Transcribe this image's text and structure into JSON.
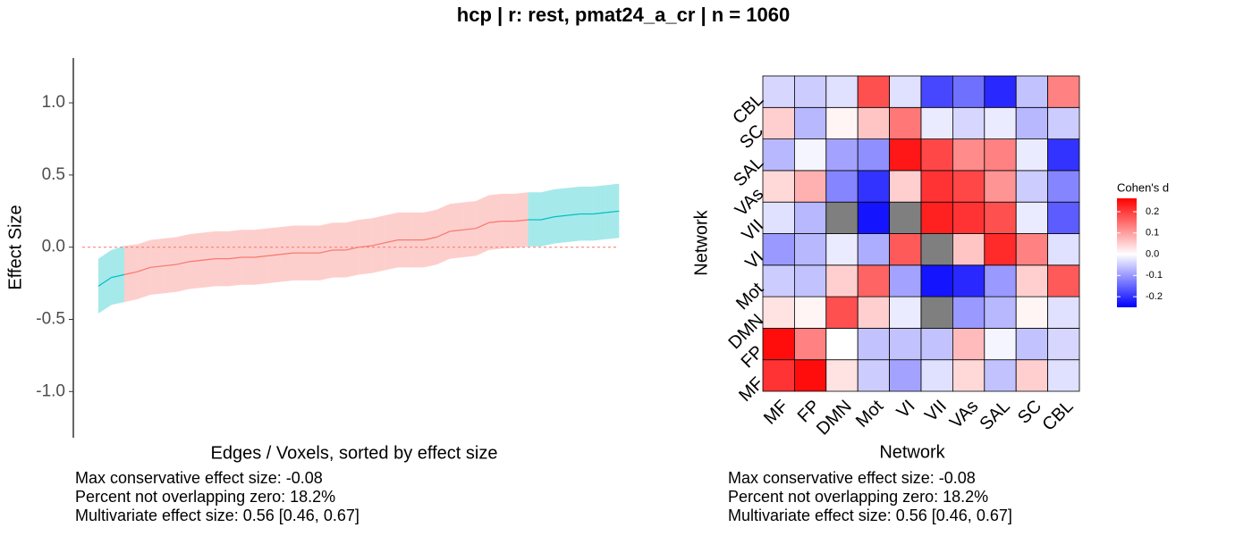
{
  "title": "hcp | r: rest, pmat24_a_cr | n = 1060",
  "chart_data": [
    {
      "type": "ribbon-line",
      "xlabel": "Edges / Voxels, sorted by effect size",
      "ylabel": "Effect Size",
      "x": [
        1,
        2,
        3,
        4,
        5,
        6,
        7,
        8,
        9,
        10,
        11,
        12,
        13,
        14,
        15,
        16,
        17,
        18,
        19,
        20,
        21,
        22,
        23,
        24,
        25,
        26,
        27,
        28,
        29,
        30,
        31,
        32,
        33,
        34,
        35,
        36,
        37,
        38,
        39,
        40,
        41
      ],
      "values": [
        -0.27,
        -0.21,
        -0.19,
        -0.17,
        -0.14,
        -0.13,
        -0.12,
        -0.1,
        -0.09,
        -0.08,
        -0.08,
        -0.07,
        -0.07,
        -0.06,
        -0.05,
        -0.04,
        -0.04,
        -0.04,
        -0.02,
        -0.02,
        0.0,
        0.01,
        0.03,
        0.05,
        0.05,
        0.05,
        0.07,
        0.11,
        0.12,
        0.13,
        0.17,
        0.18,
        0.18,
        0.19,
        0.19,
        0.21,
        0.22,
        0.23,
        0.23,
        0.24,
        0.25
      ],
      "ci_lower": [
        -0.46,
        -0.4,
        -0.38,
        -0.36,
        -0.33,
        -0.32,
        -0.31,
        -0.29,
        -0.28,
        -0.27,
        -0.27,
        -0.26,
        -0.26,
        -0.25,
        -0.24,
        -0.23,
        -0.23,
        -0.23,
        -0.21,
        -0.21,
        -0.19,
        -0.18,
        -0.16,
        -0.14,
        -0.14,
        -0.14,
        -0.12,
        -0.08,
        -0.07,
        -0.06,
        -0.02,
        -0.01,
        -0.005,
        0.005,
        0.005,
        0.025,
        0.035,
        0.045,
        0.045,
        0.055,
        0.065
      ],
      "ci_upper": [
        -0.08,
        -0.02,
        0.01,
        0.02,
        0.05,
        0.06,
        0.07,
        0.09,
        0.1,
        0.11,
        0.11,
        0.12,
        0.12,
        0.13,
        0.14,
        0.15,
        0.15,
        0.15,
        0.17,
        0.17,
        0.19,
        0.2,
        0.22,
        0.24,
        0.24,
        0.24,
        0.26,
        0.3,
        0.31,
        0.32,
        0.36,
        0.37,
        0.37,
        0.38,
        0.38,
        0.4,
        0.41,
        0.42,
        0.42,
        0.43,
        0.44
      ],
      "colors": {
        "overlap": "#f8766d",
        "nonoverlap": "#00bfc4"
      },
      "reference_line": 0,
      "xlim": [
        -0.92,
        42.9
      ],
      "ylim": [
        -1.32,
        1.31
      ],
      "yticks": [
        {
          "value": -1,
          "label": "-1.0"
        },
        -0.5,
        {
          "value": 0,
          "label": "0.0"
        },
        0.5,
        {
          "value": 1,
          "label": "1.0"
        }
      ],
      "annotations": [
        "Max conservative effect size: -0.08",
        "Percent not overlapping zero: 18.2%",
        "Multivariate effect size: 0.56 [0.46, 0.67]"
      ]
    },
    {
      "type": "heatmap",
      "xlabel": "Network",
      "ylabel": "Network",
      "x_categories": [
        "MF",
        "FP",
        "DMN",
        "Mot",
        "VI",
        "VII",
        "VAs",
        "SAL",
        "SC",
        "CBL"
      ],
      "y_categories": [
        "MF",
        "FP",
        "DMN",
        "Mot",
        "VI",
        "VII",
        "VAs",
        "SAL",
        "SC",
        "CBL"
      ],
      "z": [
        [
          0.21,
          0.25,
          0.03,
          -0.05,
          -0.09,
          -0.03,
          0.04,
          -0.06,
          0.05,
          -0.03
        ],
        [
          0.25,
          0.13,
          0.0,
          -0.06,
          -0.06,
          -0.06,
          0.07,
          -0.01,
          -0.06,
          -0.04
        ],
        [
          0.03,
          0.01,
          0.18,
          0.05,
          -0.02,
          null,
          -0.1,
          -0.07,
          0.01,
          -0.03
        ],
        [
          -0.05,
          -0.06,
          0.05,
          0.16,
          -0.09,
          -0.23,
          -0.21,
          -0.1,
          0.05,
          0.17
        ],
        [
          -0.1,
          -0.07,
          -0.02,
          -0.08,
          0.17,
          null,
          0.06,
          0.22,
          0.13,
          -0.03
        ],
        [
          -0.03,
          -0.07,
          null,
          -0.23,
          null,
          0.23,
          0.21,
          0.18,
          -0.02,
          -0.16
        ],
        [
          0.04,
          0.08,
          -0.12,
          -0.2,
          0.05,
          0.21,
          0.19,
          0.11,
          -0.05,
          -0.12
        ],
        [
          -0.07,
          -0.01,
          -0.09,
          -0.11,
          0.24,
          0.19,
          0.12,
          0.13,
          -0.02,
          -0.2
        ],
        [
          0.05,
          -0.07,
          0.01,
          0.06,
          0.14,
          -0.02,
          -0.04,
          -0.02,
          -0.07,
          -0.05
        ],
        [
          -0.04,
          -0.05,
          -0.03,
          0.18,
          -0.03,
          -0.18,
          -0.14,
          -0.21,
          -0.06,
          0.13
        ]
      ],
      "colorbar_title": "Cohen's d",
      "clim": [
        -0.25,
        0.263
      ],
      "cticks": [
        -0.2,
        -0.1,
        {
          "value": 0,
          "label": "0.0"
        },
        0.1,
        0.2
      ],
      "colors": {
        "low": "#0000ff",
        "mid": "#ffffff",
        "high": "#ff0000"
      },
      "na_color": "#7f7f7f",
      "annotations": [
        "Max conservative effect size: -0.08",
        "Percent not overlapping zero: 18.2%",
        "Multivariate effect size: 0.56 [0.46, 0.67]"
      ]
    }
  ]
}
